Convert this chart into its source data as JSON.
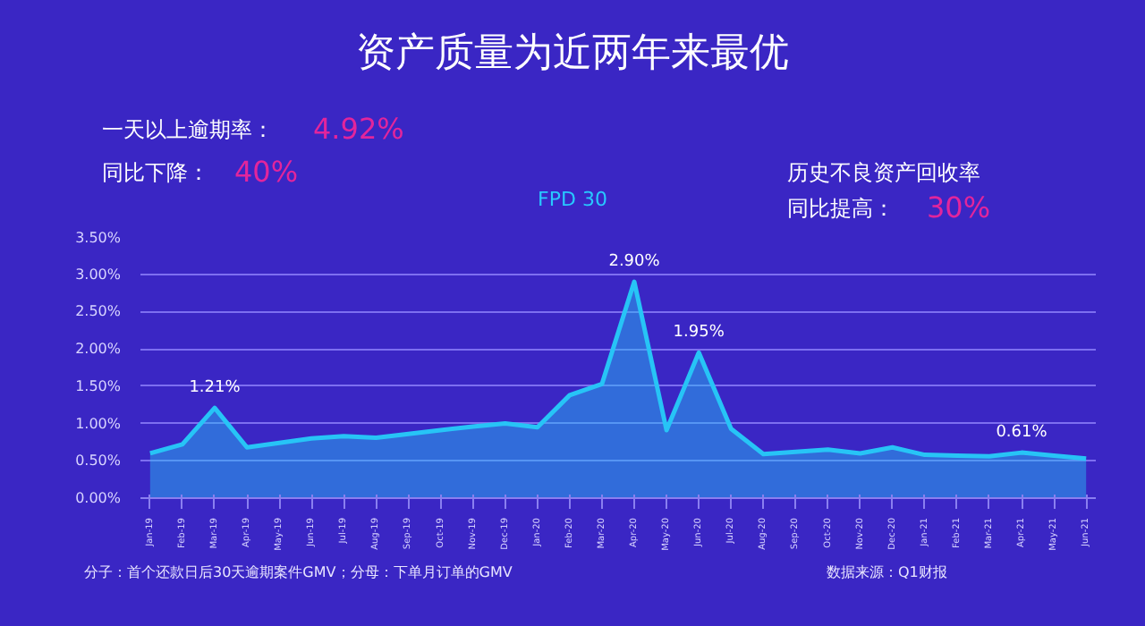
{
  "chart_data": {
    "type": "area",
    "title": "资产质量为近两年来最优",
    "subtitle": "FPD 30",
    "categories": [
      "Jan-19",
      "Feb-19",
      "Mar-19",
      "Apr-19",
      "May-19",
      "Jun-19",
      "Jul-19",
      "Aug-19",
      "Sep-19",
      "Oct-19",
      "Nov-19",
      "Dec-19",
      "Jan-20",
      "Feb-20",
      "Mar-20",
      "Apr-20",
      "May-20",
      "Jun-20",
      "Jul-20",
      "Aug-20",
      "Sep-20",
      "Oct-20",
      "Nov-20",
      "Dec-20",
      "Jan-21",
      "Feb-21",
      "Mar-21",
      "Apr-21",
      "May-21",
      "Jun-21"
    ],
    "series": [
      {
        "color": "#27c4f6",
        "values": [
          0.6,
          0.72,
          1.21,
          0.68,
          0.74,
          0.8,
          0.83,
          0.81,
          0.86,
          0.91,
          0.96,
          1.0,
          0.95,
          1.38,
          1.53,
          2.9,
          0.91,
          1.95,
          0.93,
          0.59,
          0.62,
          0.65,
          0.6,
          0.68,
          0.58,
          0.57,
          0.56,
          0.61,
          0.57,
          0.53
        ],
        "value_labels": [
          null,
          null,
          "1.21%",
          null,
          null,
          null,
          null,
          null,
          null,
          null,
          null,
          null,
          null,
          null,
          null,
          "2.90%",
          null,
          "1.95%",
          null,
          null,
          null,
          null,
          null,
          null,
          null,
          null,
          null,
          "0.61%",
          null,
          null
        ]
      }
    ],
    "ylim": [
      0,
      3.5
    ],
    "yticks": [
      {
        "value": 0,
        "label": "0.00%"
      },
      {
        "value": 0.5,
        "label": "0.50%"
      },
      {
        "value": 1,
        "label": "1.00%"
      },
      {
        "value": 1.5,
        "label": "1.50%"
      },
      {
        "value": 2,
        "label": "2.00%"
      },
      {
        "value": 2.5,
        "label": "2.50%"
      },
      {
        "value": 3,
        "label": "3.00%"
      },
      {
        "value": 3.5,
        "label": "3.50%"
      }
    ],
    "grid": "y",
    "annotations": [
      "一天以上逾期率：",
      "4.92%",
      "同比下降：",
      "40%",
      "历史不良资产回收率",
      "同比提高：",
      "30%",
      "分子：首个还款日后30天逾期案件GMV；分母：下单月订单的GMV",
      "数据来源：Q1财报"
    ]
  }
}
